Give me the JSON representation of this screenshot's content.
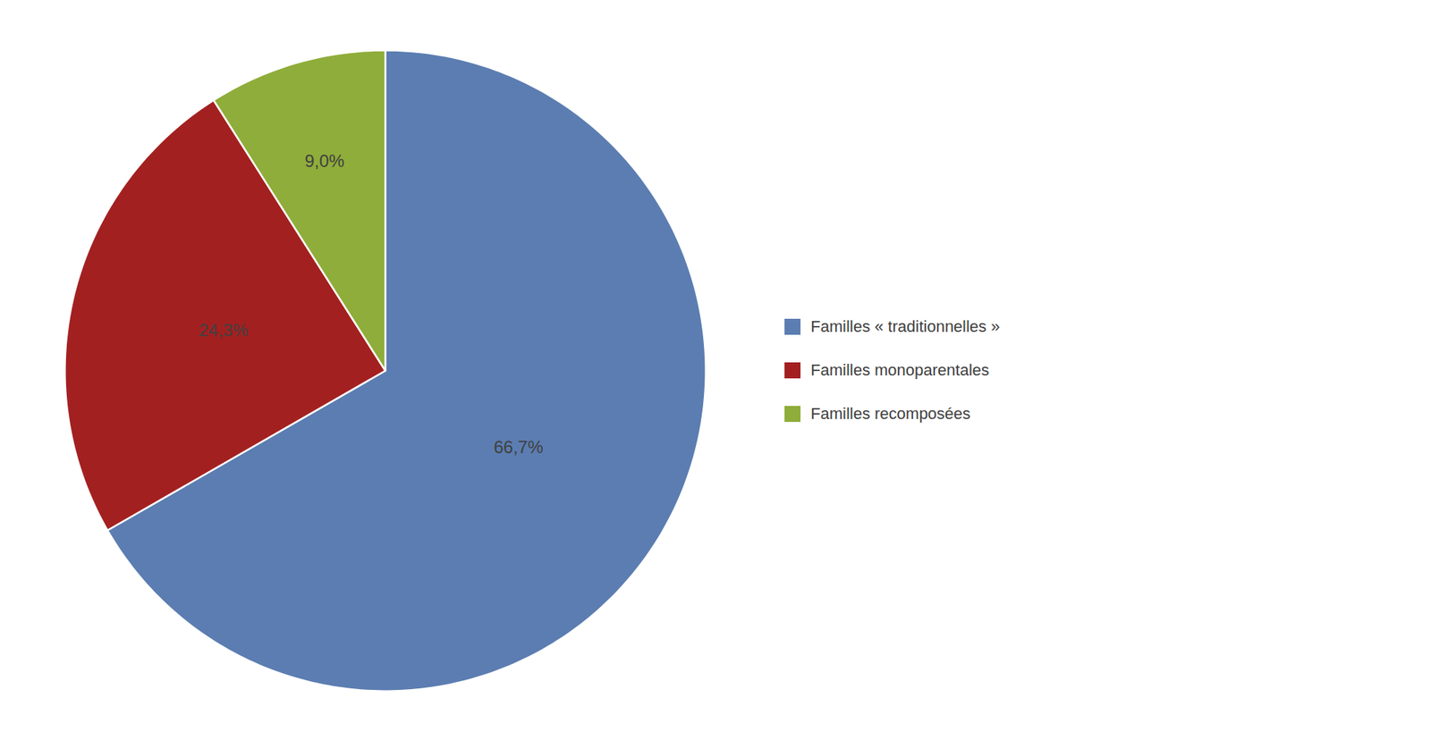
{
  "chart_data": {
    "type": "pie",
    "categories": [
      "Familles « traditionnelles »",
      "Familles monoparentales",
      "Familles recomposées"
    ],
    "values": [
      66.7,
      24.3,
      9.0
    ],
    "value_labels": [
      "66,7%",
      "24,3%",
      "9,0%"
    ],
    "colors": [
      "#5B7DB1",
      "#A32020",
      "#8FAD3A"
    ],
    "data_labels": true,
    "legend": "right"
  }
}
